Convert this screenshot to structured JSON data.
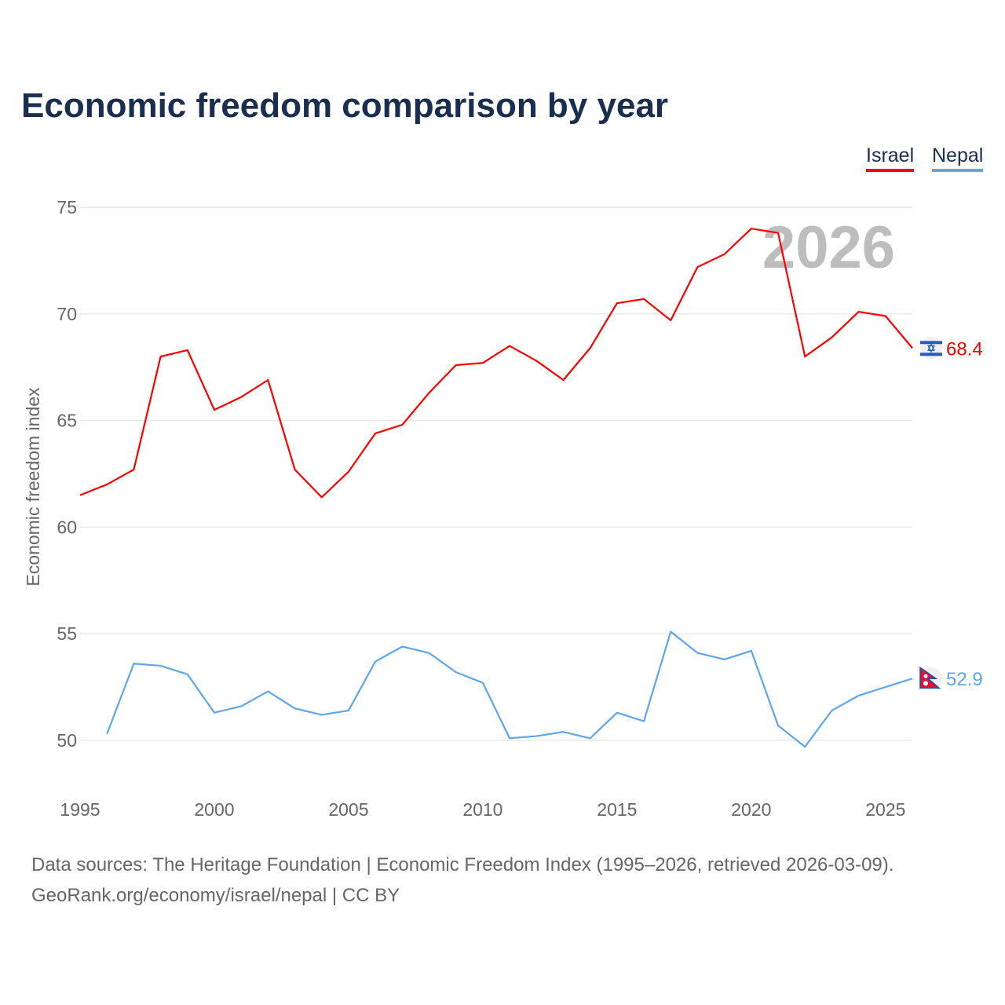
{
  "title": "Economic freedom comparison by year",
  "footer": {
    "line1": "Data sources: The Heritage Foundation | Economic Freedom Index (1995–2026, retrieved 2026-03-09).",
    "line2": "GeoRank.org/economy/israel/nepal | CC BY"
  },
  "chart_data": {
    "type": "line",
    "title": "Economic freedom comparison by year",
    "xlabel": "",
    "ylabel": "Economic freedom index",
    "xlim": [
      1995,
      2026
    ],
    "ylim": [
      48.5,
      76.5
    ],
    "yticks": [
      50,
      55,
      60,
      65,
      70,
      75
    ],
    "xticks": [
      1995,
      2000,
      2005,
      2010,
      2015,
      2020,
      2025
    ],
    "grid": true,
    "legend": "top-right",
    "year_watermark": "2026",
    "series": [
      {
        "name": "Israel",
        "color": "#ff0000",
        "flag": "israel-flag",
        "end_label": "68.4",
        "x": [
          1995,
          1996,
          1997,
          1998,
          1999,
          2000,
          2001,
          2002,
          2003,
          2004,
          2005,
          2006,
          2007,
          2008,
          2009,
          2010,
          2011,
          2012,
          2013,
          2014,
          2015,
          2016,
          2017,
          2018,
          2019,
          2020,
          2021,
          2022,
          2023,
          2024,
          2025,
          2026
        ],
        "values": [
          61.5,
          62.0,
          62.7,
          68.0,
          68.3,
          65.5,
          66.1,
          66.9,
          62.7,
          61.4,
          62.6,
          64.4,
          64.8,
          66.3,
          67.6,
          67.7,
          68.5,
          67.8,
          66.9,
          68.4,
          70.5,
          70.7,
          69.7,
          72.2,
          72.8,
          74.0,
          73.8,
          68.0,
          68.9,
          70.1,
          69.9,
          68.4
        ]
      },
      {
        "name": "Nepal",
        "color": "#5ea6ea",
        "flag": "nepal-flag",
        "end_label": "52.9",
        "x": [
          1996,
          1997,
          1998,
          1999,
          2000,
          2001,
          2002,
          2003,
          2004,
          2005,
          2006,
          2007,
          2008,
          2009,
          2010,
          2011,
          2012,
          2013,
          2014,
          2015,
          2016,
          2017,
          2018,
          2019,
          2020,
          2021,
          2022,
          2023,
          2024,
          2025,
          2026
        ],
        "values": [
          50.3,
          53.6,
          53.5,
          53.1,
          51.3,
          51.6,
          52.3,
          51.5,
          51.2,
          51.4,
          53.7,
          54.4,
          54.1,
          53.2,
          52.7,
          50.1,
          50.2,
          50.4,
          50.1,
          51.3,
          50.9,
          55.1,
          54.1,
          53.8,
          54.2,
          50.7,
          49.7,
          51.4,
          52.1,
          52.5,
          52.9
        ]
      }
    ]
  }
}
